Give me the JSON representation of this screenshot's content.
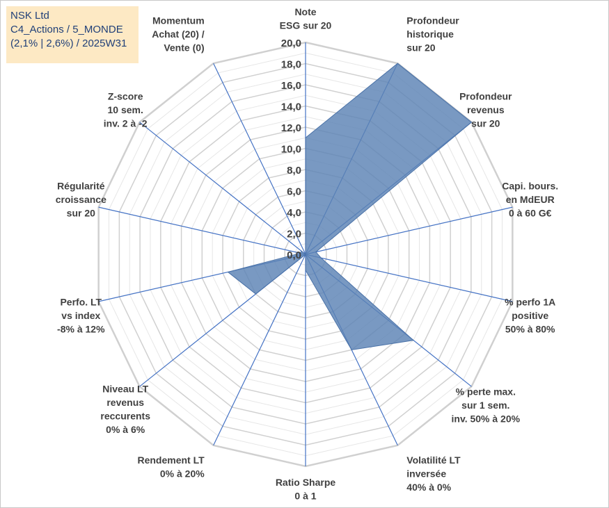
{
  "info_box": {
    "line1": "NSK Ltd",
    "line2": "C4_Actions / 5_MONDE",
    "line3": "(2,1% | 2,6%) / 2025W31"
  },
  "colors": {
    "grid": "#d0d0d0",
    "spoke": "#4472c4",
    "fill": "#5b83b5",
    "info_bg": "#fde9c4",
    "info_text": "#1f3f78",
    "label": "#404040"
  },
  "chart_data": {
    "type": "radar",
    "title": "",
    "rmax": 20,
    "ticks": [
      "0,0",
      "2,0",
      "4,0",
      "6,0",
      "8,0",
      "10,0",
      "12,0",
      "14,0",
      "16,0",
      "18,0",
      "20,0"
    ],
    "tick_values": [
      0,
      2,
      4,
      6,
      8,
      10,
      12,
      14,
      16,
      18,
      20
    ],
    "minor_rings": [
      1,
      3,
      5,
      7,
      9,
      11,
      13,
      15,
      17,
      19
    ],
    "grid": true,
    "axes": [
      {
        "label": [
          "Note",
          "ESG sur 20"
        ]
      },
      {
        "label": [
          "Profondeur",
          "historique",
          "sur 20"
        ]
      },
      {
        "label": [
          "Profondeur",
          "revenus",
          "sur 20"
        ]
      },
      {
        "label": [
          "Capi. bours.",
          "en MdEUR",
          "0 à 60 G€"
        ]
      },
      {
        "label": [
          "% perfo 1A",
          "positive",
          "50% à 80%"
        ]
      },
      {
        "label": [
          "% perte max.",
          "sur 1 sem.",
          "inv. 50% à 20%"
        ]
      },
      {
        "label": [
          "Volatilité LT",
          "inversée",
          "40% à 0%"
        ]
      },
      {
        "label": [
          "Ratio Sharpe",
          "0 à 1"
        ]
      },
      {
        "label": [
          "Rendement LT",
          "0% à 20%"
        ]
      },
      {
        "label": [
          "Niveau LT",
          "revenus",
          "reccurents",
          "0% à 6%"
        ]
      },
      {
        "label": [
          "Perfo. LT",
          "vs index",
          "-8% à 12%"
        ]
      },
      {
        "label": [
          "Régularité",
          "croissance",
          "sur 20"
        ]
      },
      {
        "label": [
          "Z-score",
          "10 sem.",
          "inv. 2 à -2"
        ]
      },
      {
        "label": [
          "Momentum",
          "Achat (20) /",
          "Vente (0)"
        ]
      }
    ],
    "series": [
      {
        "values": [
          11.0,
          20.0,
          20.0,
          1.0,
          1.5,
          13.0,
          10.0,
          1.5,
          0.0,
          6.0,
          7.5,
          0.5,
          0.5,
          0.0
        ]
      }
    ]
  }
}
